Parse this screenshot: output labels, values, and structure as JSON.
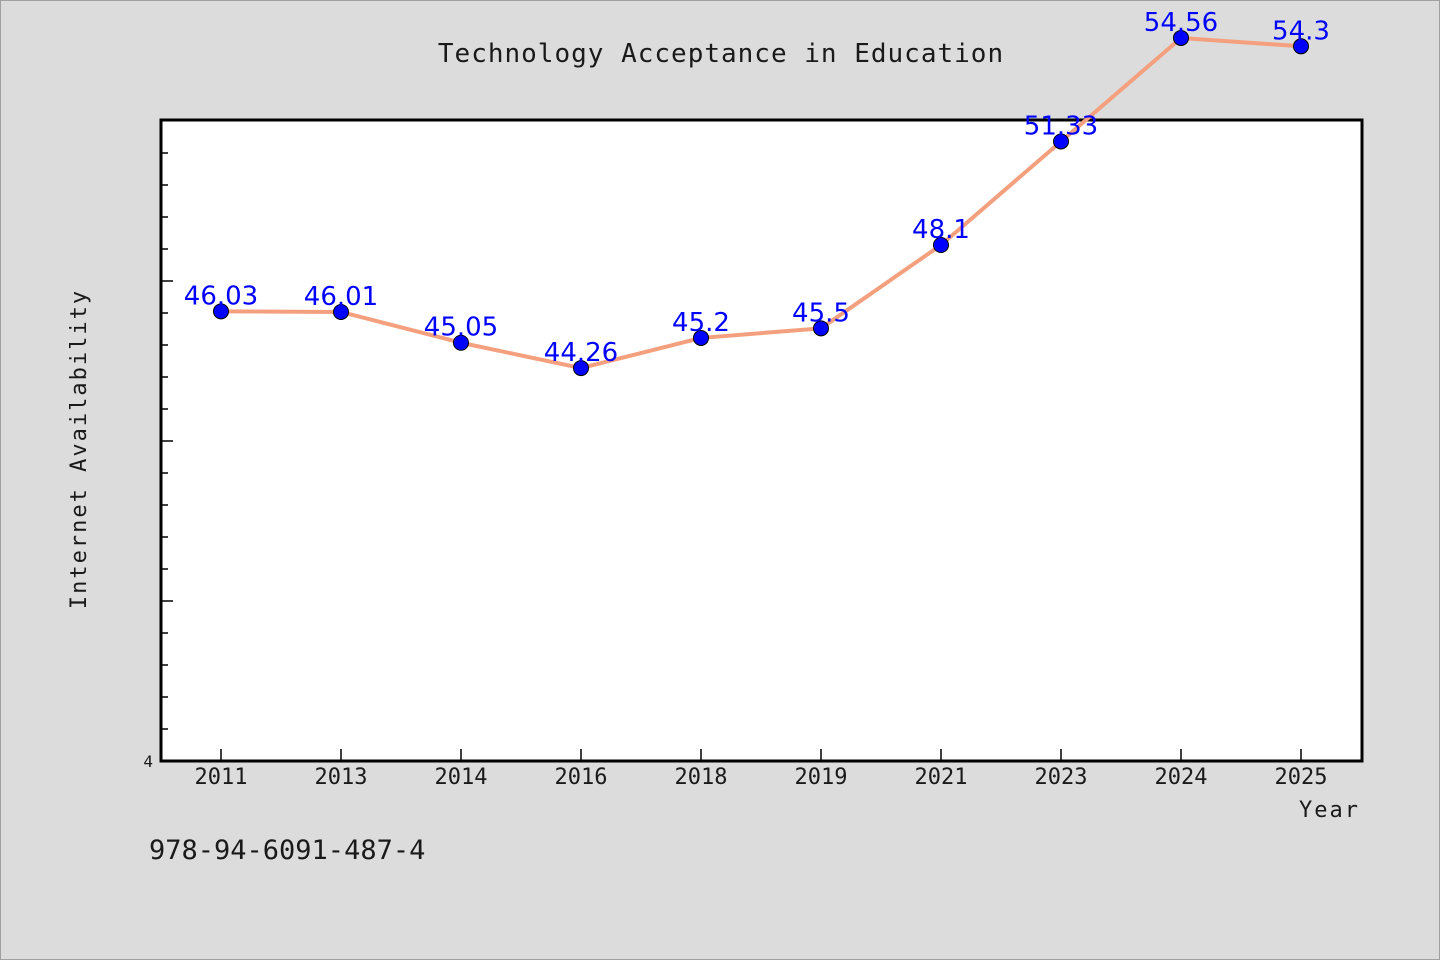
{
  "chart_data": {
    "type": "line",
    "title": "Technology Acceptance in Education",
    "xlabel": "Year",
    "ylabel": "Internet Availability",
    "categories": [
      "2011",
      "2013",
      "2014",
      "2016",
      "2018",
      "2019",
      "2021",
      "2023",
      "2024",
      "2025"
    ],
    "series": [
      {
        "values": [
          46.03,
          46.01,
          45.05,
          44.26,
          45.2,
          45.5,
          48.1,
          51.33,
          54.56,
          54.3
        ],
        "data_labels": [
          "46.03",
          "46.01",
          "45.05",
          "44.26",
          "45.2",
          "45.5",
          "48.1",
          "51.33",
          "54.56",
          "54.3"
        ]
      }
    ],
    "y_tick_labels": [
      "4"
    ],
    "ylim": [
      32,
      52
    ],
    "grid": false,
    "legend": "none",
    "colors": {
      "line": "#f4a07e",
      "marker": "#0000ff",
      "data_label": "#0000ff",
      "plot_background": "#ffffff",
      "figure_background": "#dcdcdc"
    }
  },
  "footer_code": "978-94-6091-487-4"
}
